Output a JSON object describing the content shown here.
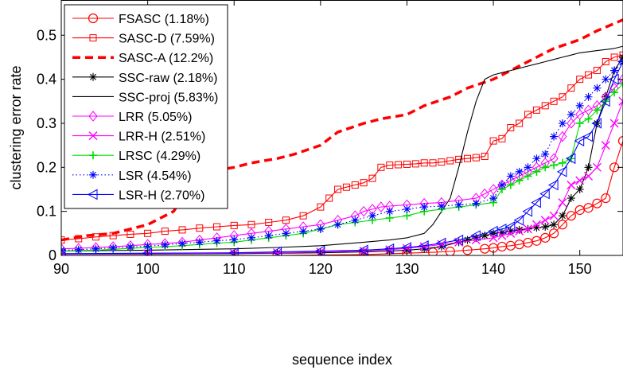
{
  "chart_data": {
    "type": "line",
    "xlabel": "sequence index",
    "ylabel": "clustering error rate",
    "xlim": [
      90,
      155
    ],
    "ylim": [
      0,
      0.58
    ],
    "xticks": [
      90,
      100,
      110,
      120,
      130,
      140,
      150
    ],
    "yticks": [
      0,
      0.1,
      0.2,
      0.3,
      0.4,
      0.5
    ],
    "xtick_labels": [
      "90",
      "100",
      "110",
      "120",
      "130",
      "140",
      "150"
    ],
    "ytick_labels": [
      "0",
      "0.1",
      "0.2",
      "0.3",
      "0.4",
      "0.5"
    ],
    "grid": false,
    "legend_position": "top-left",
    "series": [
      {
        "name": "FSASC (1.18%)",
        "color": "#ff0000",
        "line": "solid",
        "marker": "circle",
        "x": [
          90,
          115,
          125,
          130,
          133,
          135,
          137,
          139,
          140,
          141,
          142,
          143,
          144,
          145,
          146,
          147,
          148,
          149,
          150,
          151,
          152,
          153,
          154,
          155
        ],
        "y": [
          0,
          0,
          0.002,
          0.005,
          0.007,
          0.009,
          0.012,
          0.015,
          0.017,
          0.02,
          0.022,
          0.025,
          0.029,
          0.033,
          0.04,
          0.05,
          0.07,
          0.09,
          0.103,
          0.108,
          0.118,
          0.13,
          0.2,
          0.26
        ]
      },
      {
        "name": "SASC-D (7.59%)",
        "color": "#ff0000",
        "line": "solid",
        "marker": "square",
        "x": [
          90,
          92,
          94,
          96,
          98,
          100,
          102,
          104,
          106,
          108,
          110,
          112,
          114,
          116,
          118,
          120,
          121,
          122,
          123,
          124,
          125,
          126,
          127,
          128,
          129,
          130,
          131,
          132,
          133,
          134,
          135,
          136,
          137,
          138,
          139,
          140,
          141,
          142,
          143,
          144,
          145,
          146,
          147,
          148,
          149,
          150,
          151,
          152,
          153,
          154,
          155
        ],
        "y": [
          0.035,
          0.038,
          0.042,
          0.045,
          0.048,
          0.05,
          0.055,
          0.058,
          0.062,
          0.065,
          0.068,
          0.07,
          0.075,
          0.08,
          0.09,
          0.11,
          0.13,
          0.15,
          0.155,
          0.16,
          0.165,
          0.175,
          0.2,
          0.205,
          0.206,
          0.207,
          0.208,
          0.21,
          0.21,
          0.212,
          0.215,
          0.218,
          0.22,
          0.222,
          0.225,
          0.26,
          0.265,
          0.29,
          0.3,
          0.32,
          0.33,
          0.34,
          0.35,
          0.36,
          0.38,
          0.4,
          0.41,
          0.42,
          0.44,
          0.45,
          0.455
        ]
      },
      {
        "name": "SASC-A (12.2%)",
        "color": "#ff0000",
        "line": "dashed",
        "marker": "none",
        "x": [
          90,
          93,
          96,
          98,
          100,
          101,
          102,
          103,
          104,
          105,
          107,
          110,
          112,
          115,
          117,
          120,
          122,
          125,
          127,
          130,
          132,
          135,
          137,
          140,
          142,
          145,
          147,
          150,
          152,
          155
        ],
        "y": [
          0.035,
          0.045,
          0.05,
          0.06,
          0.07,
          0.08,
          0.09,
          0.1,
          0.13,
          0.17,
          0.19,
          0.2,
          0.21,
          0.22,
          0.23,
          0.25,
          0.28,
          0.3,
          0.31,
          0.32,
          0.34,
          0.36,
          0.38,
          0.4,
          0.42,
          0.45,
          0.47,
          0.49,
          0.51,
          0.535
        ]
      },
      {
        "name": "SSC-raw (2.18%)",
        "color": "#000000",
        "line": "solid",
        "marker": "star",
        "x": [
          90,
          100,
          110,
          115,
          120,
          125,
          128,
          130,
          132,
          134,
          136,
          137,
          138,
          139,
          140,
          141,
          142,
          143,
          144,
          145,
          146,
          147,
          148,
          149,
          150,
          151,
          152,
          153,
          154,
          155
        ],
        "y": [
          0.003,
          0.003,
          0.004,
          0.005,
          0.006,
          0.008,
          0.01,
          0.012,
          0.015,
          0.02,
          0.03,
          0.035,
          0.04,
          0.045,
          0.05,
          0.052,
          0.055,
          0.058,
          0.06,
          0.063,
          0.065,
          0.07,
          0.09,
          0.13,
          0.15,
          0.2,
          0.3,
          0.36,
          0.42,
          0.45
        ]
      },
      {
        "name": "SSC-proj (5.83%)",
        "color": "#000000",
        "line": "solid",
        "marker": "none",
        "x": [
          90,
          100,
          110,
          115,
          120,
          125,
          128,
          130,
          132,
          133,
          134,
          135,
          136,
          137,
          138,
          139,
          140,
          141,
          142,
          143,
          144,
          145,
          146,
          147,
          148,
          149,
          150,
          152,
          154,
          155
        ],
        "y": [
          0.01,
          0.012,
          0.015,
          0.018,
          0.022,
          0.03,
          0.035,
          0.04,
          0.05,
          0.07,
          0.1,
          0.13,
          0.2,
          0.28,
          0.35,
          0.4,
          0.41,
          0.415,
          0.42,
          0.425,
          0.43,
          0.435,
          0.44,
          0.445,
          0.45,
          0.455,
          0.46,
          0.465,
          0.47,
          0.475
        ]
      },
      {
        "name": "LRR (5.05%)",
        "color": "#ff00ff",
        "line": "solid",
        "marker": "diamond",
        "x": [
          90,
          92,
          94,
          96,
          98,
          100,
          102,
          104,
          106,
          108,
          110,
          112,
          114,
          116,
          118,
          120,
          122,
          124,
          125,
          126,
          127,
          128,
          130,
          132,
          134,
          136,
          138,
          139,
          140,
          141,
          142,
          143,
          144,
          145,
          146,
          147,
          148,
          149,
          150,
          151,
          152,
          153,
          154,
          155
        ],
        "y": [
          0.015,
          0.016,
          0.018,
          0.02,
          0.022,
          0.025,
          0.027,
          0.03,
          0.035,
          0.04,
          0.045,
          0.05,
          0.055,
          0.06,
          0.065,
          0.07,
          0.08,
          0.09,
          0.1,
          0.105,
          0.11,
          0.112,
          0.115,
          0.118,
          0.12,
          0.125,
          0.13,
          0.14,
          0.15,
          0.16,
          0.17,
          0.18,
          0.19,
          0.2,
          0.21,
          0.22,
          0.27,
          0.3,
          0.32,
          0.33,
          0.34,
          0.36,
          0.38,
          0.4
        ]
      },
      {
        "name": "LRR-H (2.51%)",
        "color": "#ff00ff",
        "line": "solid",
        "marker": "x",
        "x": [
          90,
          100,
          110,
          115,
          120,
          125,
          128,
          130,
          132,
          134,
          136,
          138,
          140,
          141,
          142,
          143,
          144,
          145,
          146,
          147,
          148,
          149,
          150,
          151,
          152,
          153,
          154,
          155
        ],
        "y": [
          0.003,
          0.004,
          0.005,
          0.006,
          0.008,
          0.01,
          0.013,
          0.016,
          0.02,
          0.025,
          0.03,
          0.035,
          0.04,
          0.045,
          0.05,
          0.055,
          0.06,
          0.07,
          0.08,
          0.09,
          0.12,
          0.16,
          0.17,
          0.18,
          0.2,
          0.25,
          0.3,
          0.35
        ]
      },
      {
        "name": "LRSC (4.29%)",
        "color": "#00dd00",
        "line": "solid",
        "marker": "plus",
        "x": [
          90,
          92,
          94,
          96,
          98,
          100,
          102,
          104,
          106,
          108,
          110,
          112,
          114,
          116,
          118,
          120,
          122,
          124,
          126,
          128,
          130,
          132,
          134,
          136,
          138,
          140,
          141,
          142,
          143,
          144,
          145,
          146,
          147,
          148,
          149,
          150,
          151,
          152,
          153,
          154,
          155
        ],
        "y": [
          0.01,
          0.011,
          0.012,
          0.014,
          0.016,
          0.018,
          0.02,
          0.022,
          0.025,
          0.028,
          0.03,
          0.035,
          0.04,
          0.045,
          0.05,
          0.06,
          0.07,
          0.075,
          0.08,
          0.085,
          0.09,
          0.1,
          0.105,
          0.11,
          0.115,
          0.12,
          0.15,
          0.16,
          0.17,
          0.18,
          0.19,
          0.2,
          0.205,
          0.21,
          0.22,
          0.3,
          0.31,
          0.33,
          0.35,
          0.37,
          0.39
        ]
      },
      {
        "name": "LSR (4.54%)",
        "color": "#0000ff",
        "line": "dotted",
        "marker": "star",
        "x": [
          90,
          92,
          94,
          96,
          98,
          100,
          102,
          104,
          106,
          108,
          110,
          112,
          114,
          116,
          118,
          120,
          122,
          124,
          126,
          128,
          130,
          132,
          134,
          136,
          138,
          140,
          141,
          142,
          143,
          144,
          145,
          146,
          147,
          148,
          149,
          150,
          151,
          152,
          153,
          154,
          155
        ],
        "y": [
          0.012,
          0.013,
          0.015,
          0.017,
          0.019,
          0.021,
          0.024,
          0.027,
          0.03,
          0.033,
          0.036,
          0.04,
          0.045,
          0.05,
          0.055,
          0.06,
          0.07,
          0.08,
          0.09,
          0.1,
          0.105,
          0.11,
          0.112,
          0.115,
          0.118,
          0.13,
          0.16,
          0.18,
          0.19,
          0.2,
          0.22,
          0.23,
          0.27,
          0.3,
          0.32,
          0.34,
          0.36,
          0.38,
          0.4,
          0.42,
          0.44
        ]
      },
      {
        "name": "LSR-H (2.70%)",
        "color": "#0000ff",
        "line": "solid",
        "marker": "triangle-left",
        "x": [
          90,
          100,
          110,
          115,
          120,
          125,
          128,
          130,
          132,
          134,
          136,
          138,
          140,
          141,
          142,
          143,
          144,
          145,
          146,
          147,
          148,
          149,
          150,
          151,
          152,
          153,
          154,
          155
        ],
        "y": [
          0.004,
          0.005,
          0.006,
          0.008,
          0.01,
          0.012,
          0.015,
          0.018,
          0.022,
          0.028,
          0.035,
          0.045,
          0.055,
          0.06,
          0.065,
          0.08,
          0.1,
          0.12,
          0.14,
          0.16,
          0.19,
          0.22,
          0.26,
          0.27,
          0.3,
          0.35,
          0.4,
          0.44
        ]
      }
    ]
  }
}
